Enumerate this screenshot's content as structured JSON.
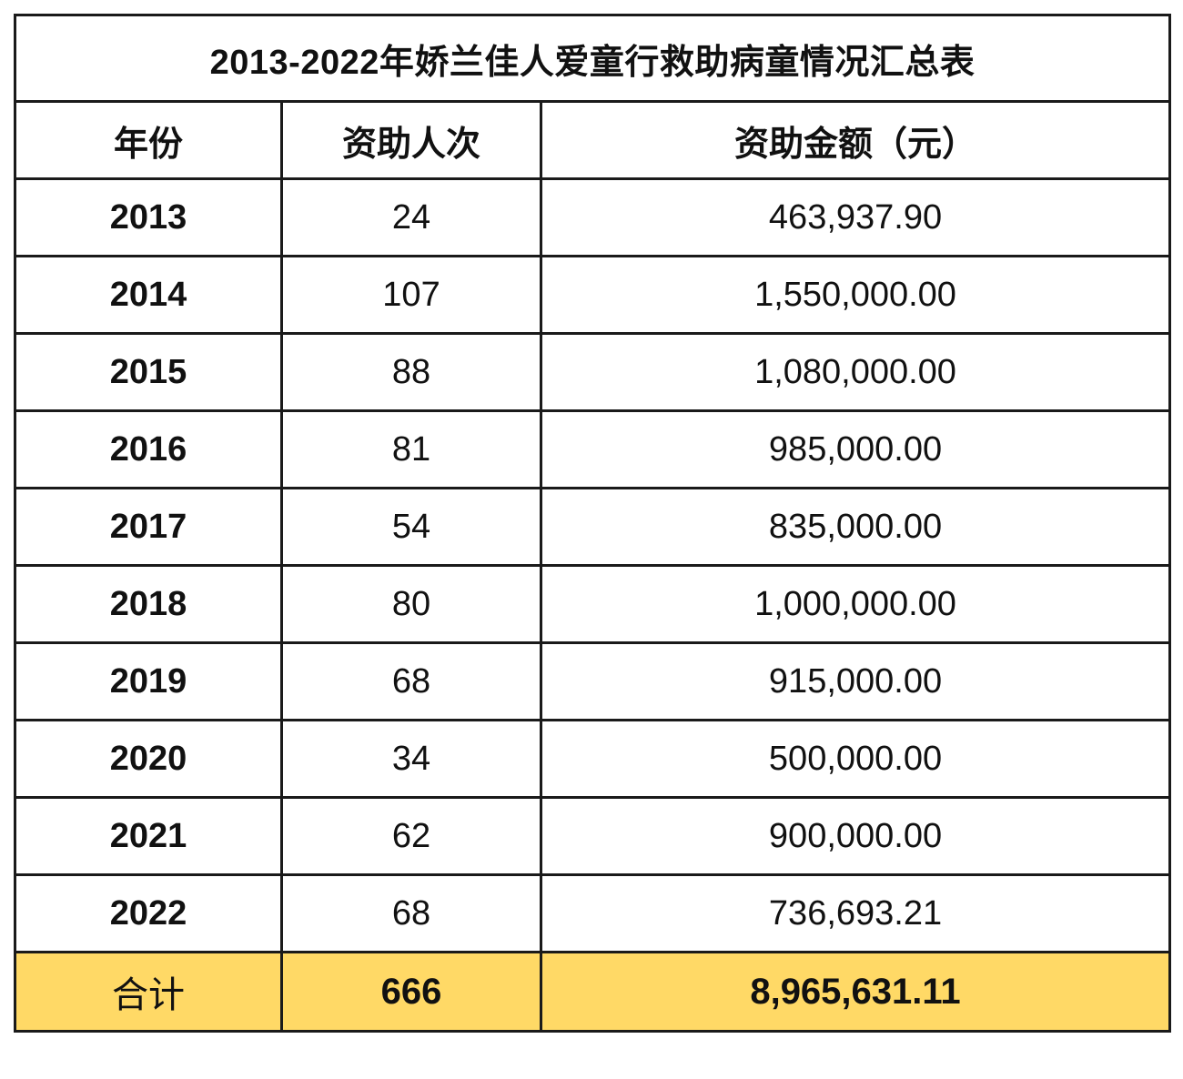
{
  "title": "2013-2022年娇兰佳人爱童行救助病童情况汇总表",
  "headers": [
    "年份",
    "资助人次",
    "资助金额（元）"
  ],
  "rows": [
    {
      "year": "2013",
      "count": "24",
      "amount": "463,937.90"
    },
    {
      "year": "2014",
      "count": "107",
      "amount": "1,550,000.00"
    },
    {
      "year": "2015",
      "count": "88",
      "amount": "1,080,000.00"
    },
    {
      "year": "2016",
      "count": "81",
      "amount": "985,000.00"
    },
    {
      "year": "2017",
      "count": "54",
      "amount": "835,000.00"
    },
    {
      "year": "2018",
      "count": "80",
      "amount": "1,000,000.00"
    },
    {
      "year": "2019",
      "count": "68",
      "amount": "915,000.00"
    },
    {
      "year": "2020",
      "count": "34",
      "amount": "500,000.00"
    },
    {
      "year": "2021",
      "count": "62",
      "amount": "900,000.00"
    },
    {
      "year": "2022",
      "count": "68",
      "amount": "736,693.21"
    }
  ],
  "total": {
    "label": "合计",
    "count": "666",
    "amount": "8,965,631.11"
  },
  "colors": {
    "total_row_bg": "#FFD966",
    "border": "#1a1a1a"
  }
}
